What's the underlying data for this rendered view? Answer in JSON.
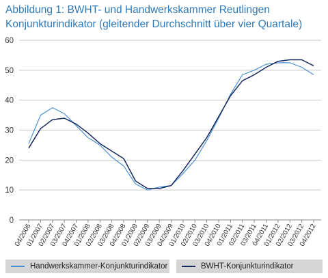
{
  "title": {
    "line1": "Abbildung 1: BWHT- und Handwerkskammer  Reutlingen",
    "line2": "Konjunkturindikator (gleitender Durchschnitt über vier Quartale)"
  },
  "chart_data": {
    "type": "line",
    "title": "Abbildung 1: BWHT- und Handwerkskammer  Reutlingen Konjunkturindikator (gleitender Durchschnitt über vier Quartale)",
    "xlabel": "",
    "ylabel": "",
    "ylim": [
      0,
      60
    ],
    "yticks": [
      0,
      10,
      20,
      30,
      40,
      50,
      60
    ],
    "grid": "horizontal",
    "legend_position": "bottom",
    "categories": [
      "04/2006",
      "01/2007",
      "02/2007",
      "03/2007",
      "04/2007",
      "01/2008",
      "02/2008",
      "03/2008",
      "04/2008",
      "01/2009",
      "02/2009",
      "03/2009",
      "04/2009",
      "01/2010",
      "02/2010",
      "03/2010",
      "04/2010",
      "01/2011",
      "02/2011",
      "03/2011",
      "04/2011",
      "01/2012",
      "02/2012",
      "03/2012",
      "04/2012"
    ],
    "series": [
      {
        "name": "Handwerkskammer-Konjunkturindikator",
        "color": "#4a90d0",
        "values": [
          25.5,
          35,
          37.5,
          35.5,
          31.5,
          27.5,
          25,
          21,
          18,
          12,
          10,
          11,
          11.5,
          15.5,
          20,
          26.5,
          34,
          42,
          48.5,
          50,
          52,
          52.5,
          52.5,
          51,
          48.5
        ]
      },
      {
        "name": "BWHT-Konjunkturindikator",
        "color": "#15285e",
        "values": [
          24,
          30.5,
          33.5,
          34,
          32,
          29,
          25.5,
          23,
          20.5,
          13,
          10.5,
          10.5,
          11.5,
          16.5,
          22,
          27.5,
          34.5,
          41.5,
          46.5,
          48.5,
          51,
          53,
          53.5,
          53.5,
          51.5
        ]
      }
    ]
  }
}
